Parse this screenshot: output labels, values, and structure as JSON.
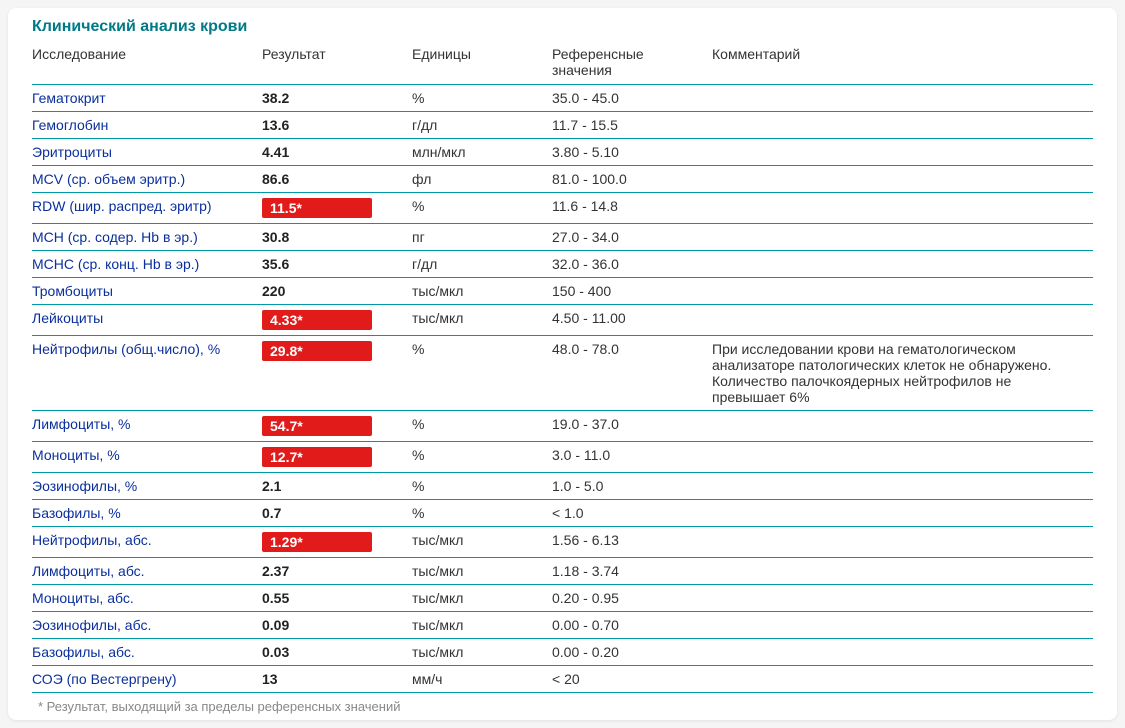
{
  "title": "Клинический анализ крови",
  "columns": {
    "param": "Исследование",
    "result": "Результат",
    "unit": "Единицы",
    "ref": "Референсные значения",
    "comment": "Комментарий"
  },
  "colors": {
    "accent_teal": "#009aa6",
    "heading_teal": "#007a87",
    "link_blue": "#0a2f9d",
    "flag_red": "#e11a1a",
    "flag_text": "#ffffff",
    "background": "#ffffff",
    "page_bg": "#f5f5f5",
    "footnote_gray": "#888888"
  },
  "rows": [
    {
      "param": "Гематокрит",
      "result": "38.2",
      "flagged": false,
      "unit": "%",
      "ref": "35.0 - 45.0",
      "comment": ""
    },
    {
      "param": "Гемоглобин",
      "result": "13.6",
      "flagged": false,
      "unit": "г/дл",
      "ref": "11.7 - 15.5",
      "comment": ""
    },
    {
      "param": "Эритроциты",
      "result": "4.41",
      "flagged": false,
      "unit": "млн/мкл",
      "ref": "3.80 - 5.10",
      "comment": ""
    },
    {
      "param": "MCV (ср. объем эритр.)",
      "result": "86.6",
      "flagged": false,
      "unit": "фл",
      "ref": "81.0 - 100.0",
      "comment": ""
    },
    {
      "param": "RDW (шир. распред. эритр)",
      "result": "11.5*",
      "flagged": true,
      "unit": "%",
      "ref": "11.6 - 14.8",
      "comment": ""
    },
    {
      "param": "MCH (ср. содер. Hb в эр.)",
      "result": "30.8",
      "flagged": false,
      "unit": "пг",
      "ref": "27.0 - 34.0",
      "comment": ""
    },
    {
      "param": "MCHC (ср. конц. Hb в эр.)",
      "result": "35.6",
      "flagged": false,
      "unit": "г/дл",
      "ref": "32.0 - 36.0",
      "comment": ""
    },
    {
      "param": "Тромбоциты",
      "result": "220",
      "flagged": false,
      "unit": "тыс/мкл",
      "ref": "150 - 400",
      "comment": ""
    },
    {
      "param": "Лейкоциты",
      "result": "4.33*",
      "flagged": true,
      "unit": "тыс/мкл",
      "ref": "4.50 - 11.00",
      "comment": ""
    },
    {
      "param": "Нейтрофилы (общ.число), %",
      "result": "29.8*",
      "flagged": true,
      "unit": "%",
      "ref": "48.0 - 78.0",
      "comment": "При исследовании крови на гематологическом анализаторе патологических клеток не обнаружено. Количество палочкоядерных нейтрофилов не превышает 6%"
    },
    {
      "param": "Лимфоциты, %",
      "result": "54.7*",
      "flagged": true,
      "unit": "%",
      "ref": "19.0 - 37.0",
      "comment": ""
    },
    {
      "param": "Моноциты, %",
      "result": "12.7*",
      "flagged": true,
      "unit": "%",
      "ref": "3.0 - 11.0",
      "comment": ""
    },
    {
      "param": "Эозинофилы, %",
      "result": "2.1",
      "flagged": false,
      "unit": "%",
      "ref": "1.0 - 5.0",
      "comment": ""
    },
    {
      "param": "Базофилы, %",
      "result": "0.7",
      "flagged": false,
      "unit": "%",
      "ref": "< 1.0",
      "comment": ""
    },
    {
      "param": "Нейтрофилы, абс.",
      "result": "1.29*",
      "flagged": true,
      "unit": "тыс/мкл",
      "ref": "1.56 - 6.13",
      "comment": ""
    },
    {
      "param": "Лимфоциты, абс.",
      "result": "2.37",
      "flagged": false,
      "unit": "тыс/мкл",
      "ref": "1.18 - 3.74",
      "comment": ""
    },
    {
      "param": "Моноциты, абс.",
      "result": "0.55",
      "flagged": false,
      "unit": "тыс/мкл",
      "ref": "0.20 - 0.95",
      "comment": ""
    },
    {
      "param": "Эозинофилы, абс.",
      "result": "0.09",
      "flagged": false,
      "unit": "тыс/мкл",
      "ref": "0.00 - 0.70",
      "comment": ""
    },
    {
      "param": "Базофилы, абс.",
      "result": "0.03",
      "flagged": false,
      "unit": "тыс/мкл",
      "ref": "0.00 - 0.20",
      "comment": ""
    },
    {
      "param": "СОЭ (по Вестергрену)",
      "result": "13",
      "flagged": false,
      "unit": "мм/ч",
      "ref": "< 20",
      "comment": ""
    }
  ],
  "footnote": "* Результат, выходящий за пределы референсных значений"
}
